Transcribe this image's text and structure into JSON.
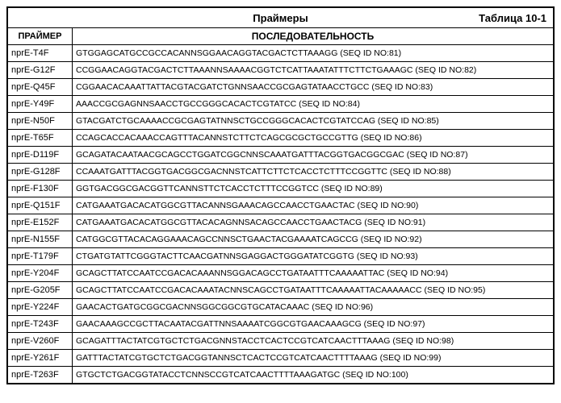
{
  "title": "Праймеры",
  "table_label": "Таблица 10-1",
  "headers": {
    "primer": "ПРАЙМЕР",
    "sequence": "ПОСЛЕДОВАТЕЛЬНОСТЬ"
  },
  "rows": [
    {
      "primer": "nprE-T4F",
      "seq": "GTGGAGCATGCCGCCACANNSGGAACAGGTACGACTCTTAAAGG (SEQ ID NO:81)"
    },
    {
      "primer": "nprE-G12F",
      "seq": "CCGGAACAGGTACGACTCTTAAANNSAAAACGGTCTCATTAAATATTTCTTCTGAAAGC (SEQ ID NO:82)"
    },
    {
      "primer": "nprE-Q45F",
      "seq": "CGGAACACAAATTATTACGTACGATCTGNNSAACCGCGAGTATAACCTGCC (SEQ ID NO:83)"
    },
    {
      "primer": "nprE-Y49F",
      "seq": "AAACCGCGAGNNSAACCTGCCGGGCACACTCGTATCC (SEQ ID NO:84)"
    },
    {
      "primer": "nprE-N50F",
      "seq": "GTACGATCTGCAAAACCGCGAGTATNNSCTGCCGGGCACACTCGTATCCAG (SEQ ID NO:85)"
    },
    {
      "primer": "nprE-T65F",
      "seq": "CCAGCACCACAAACCAGTTTACANNSTCTTCTCAGCGCGCTGCCGTTG (SEQ ID NO:86)"
    },
    {
      "primer": "nprE-D119F",
      "seq": "GCAGATACAATAACGCAGCCTGGATCGGCNNSCAAATGATTTACGGTGACGGCGAC (SEQ ID NO:87)"
    },
    {
      "primer": "nprE-G128F",
      "seq": "CCAAATGATTTACGGTGACGGCGACNNSTCATTCTTCTCACCTCTTTCCGGTTC (SEQ ID NO:88)"
    },
    {
      "primer": "nprE-F130F",
      "seq": "GGTGACGGCGACGGTTCANNSTTCTCACCTCTTTCCGGTCC (SEQ ID NO:89)"
    },
    {
      "primer": "nprE-Q151F",
      "seq": "CATGAAATGACACATGGCGTTACANNSGAAACAGCCAACCTGAACTAC (SEQ ID NO:90)"
    },
    {
      "primer": "nprE-E152F",
      "seq": "CATGAAATGACACATGGCGTTACACAGNNSACAGCCAACCTGAACTACG (SEQ ID NO:91)"
    },
    {
      "primer": "nprE-N155F",
      "seq": "CATGGCGTTACACAGGAAACAGCCNNSCTGAACTACGAAAATCAGCCG (SEQ ID NO:92)"
    },
    {
      "primer": "nprE-T179F",
      "seq": "CTGATGTATTCGGGTACTTCAACGATNNSGAGGACTGGGATATCGGTG (SEQ ID NO:93)"
    },
    {
      "primer": "nprE-Y204F",
      "seq": "GCAGCTTATCCAATCCGACACAAANNSGGACAGCCTGATAATTTCAAAAATTAC (SEQ ID NO:94)"
    },
    {
      "primer": "nprE-G205F",
      "seq": "GCAGCTTATCCAATCCGACACAAATACNNSCAGCCTGATAATTTCAAAAATTACAAAAACC (SEQ ID NO:95)"
    },
    {
      "primer": "nprE-Y224F",
      "seq": "GAACACTGATGCGGCGACNNSGGCGGCGTGCATACAAAC (SEQ ID NO:96)"
    },
    {
      "primer": "nprE-T243F",
      "seq": "GAACAAAGCCGCTTACAATACGATTNNSAAAATCGGCGTGAACAAAGCG (SEQ ID NO:97)"
    },
    {
      "primer": "nprE-V260F",
      "seq": "GCAGATTTACTATCGTGCTCTGACGNNSTACCTCACTCCGTCATCAACTTTAAAG (SEQ ID NO:98)"
    },
    {
      "primer": "nprE-Y261F",
      "seq": "GATTTACTATCGTGCTCTGACGGTANNSCTCACTCCGTCATCAACTTTTAAAG (SEQ ID NO:99)"
    },
    {
      "primer": "nprE-T263F",
      "seq": "GTGCTCTGACGGTATACCTCNNSCCGTCATCAACTTTTAAAGATGC (SEQ ID NO:100)"
    }
  ]
}
